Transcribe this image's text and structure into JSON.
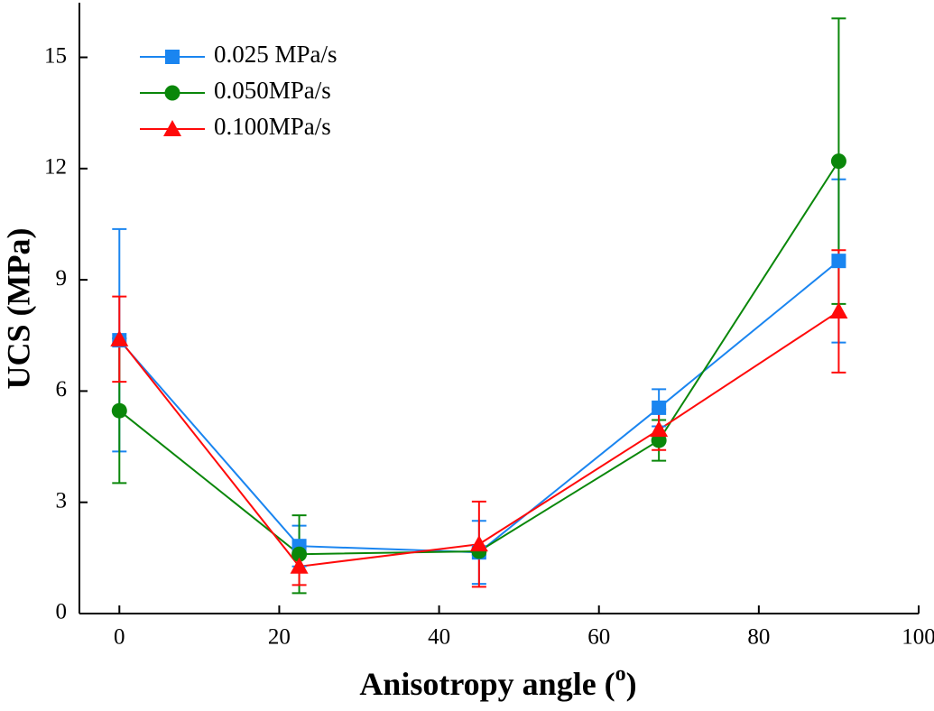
{
  "chart_data": {
    "type": "line",
    "ylabel": "UCS (MPa)",
    "xlabel": [
      "Anisotropy angle (",
      "o",
      ")"
    ],
    "x": [
      0,
      22.5,
      45,
      67.5,
      90
    ],
    "xlim": [
      -5,
      100
    ],
    "xticks": [
      0,
      20,
      40,
      60,
      80,
      100
    ],
    "ylim": [
      0,
      16.4
    ],
    "yticks": [
      0,
      3,
      6,
      9,
      12,
      15
    ],
    "legend": "upper-left",
    "series": [
      {
        "name": "0.025 MPa/s",
        "color": "#1a85f0",
        "marker": "square",
        "values": [
          7.37,
          1.82,
          1.65,
          5.55,
          9.51
        ],
        "errors": [
          3.0,
          0.55,
          0.85,
          0.5,
          2.2
        ]
      },
      {
        "name": "0.050MPa/s",
        "color": "#0a870a",
        "marker": "circle",
        "values": [
          5.47,
          1.6,
          1.68,
          4.67,
          12.2
        ],
        "errors": [
          1.95,
          1.05,
          0.1,
          0.55,
          3.85
        ]
      },
      {
        "name": "0.100MPa/s",
        "color": "#ff0a0a",
        "marker": "triangle",
        "values": [
          7.4,
          1.27,
          1.87,
          4.96,
          8.15
        ],
        "errors": [
          1.15,
          0.5,
          1.15,
          0.55,
          1.65
        ]
      }
    ]
  }
}
